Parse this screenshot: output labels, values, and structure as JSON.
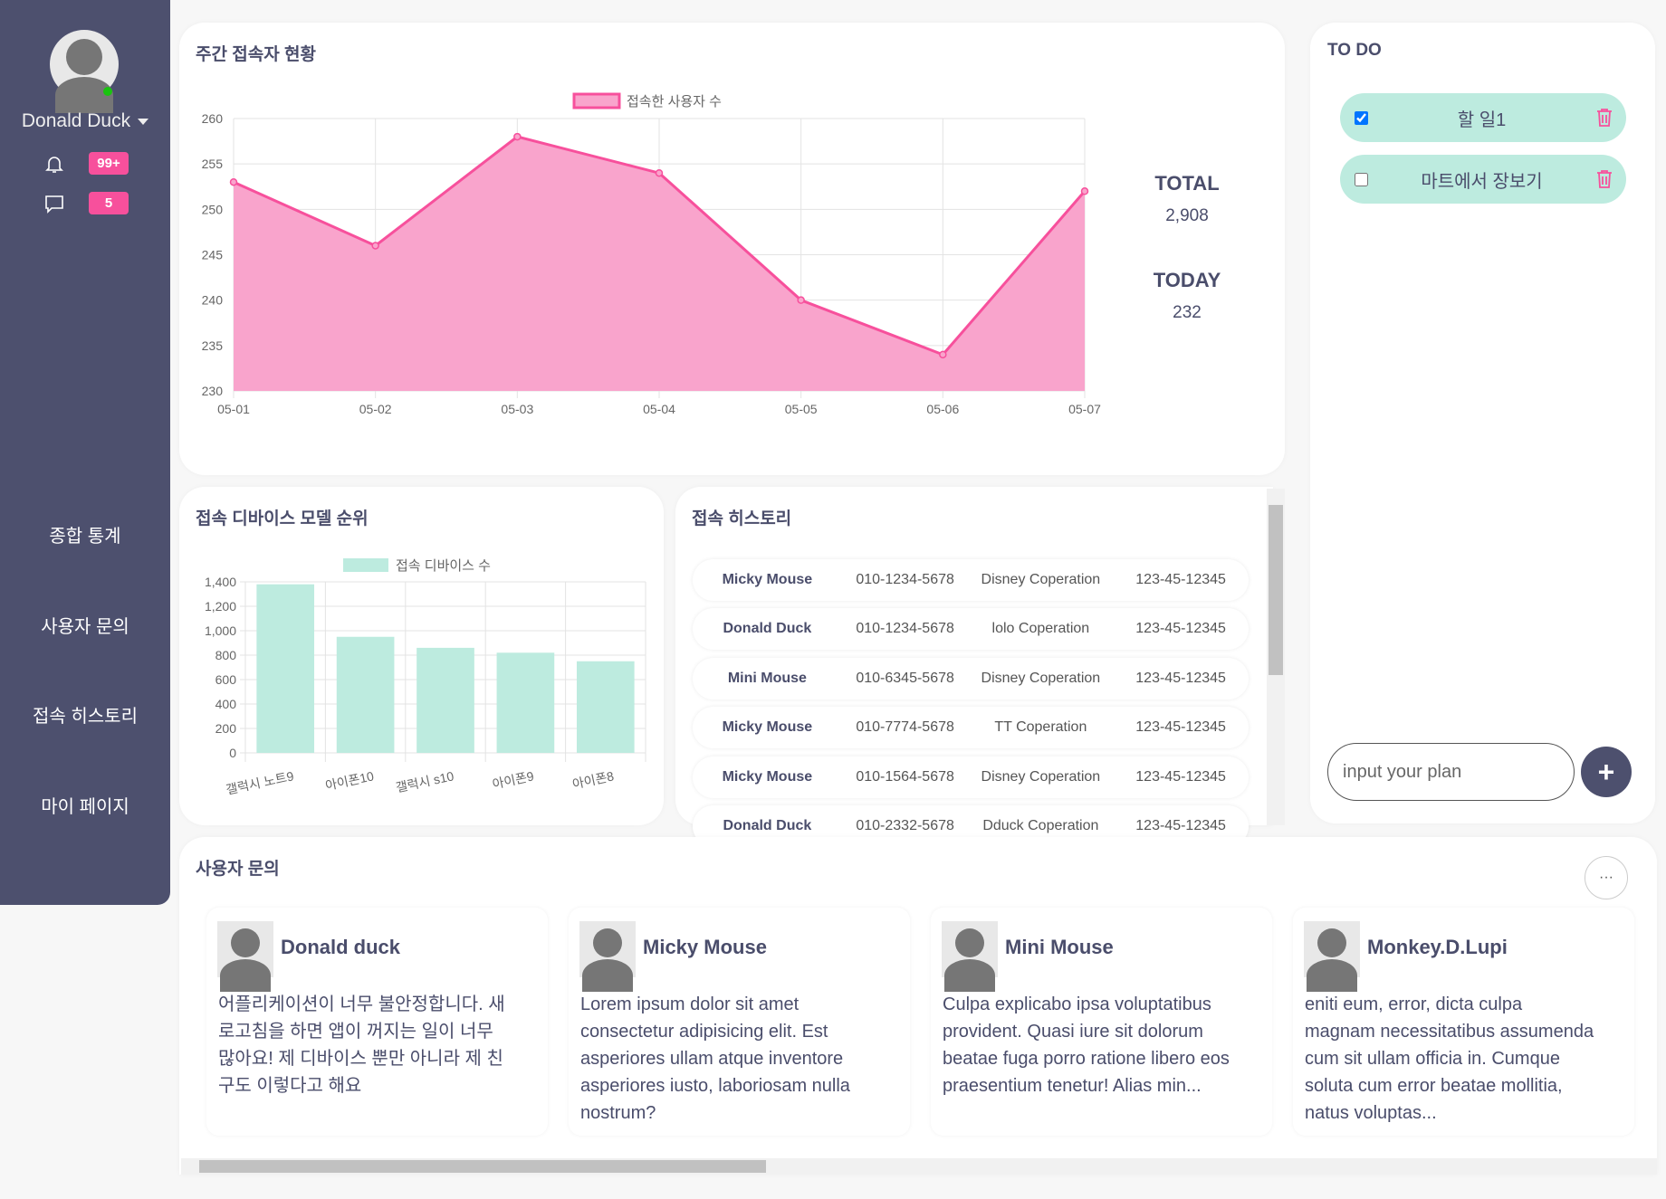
{
  "sidebar": {
    "user": "Donald Duck",
    "notifications": "99+",
    "messages": "5",
    "menu": [
      {
        "label": "종합 통계"
      },
      {
        "label": "사용자 문의"
      },
      {
        "label": "접속 히스토리"
      },
      {
        "label": "마이 페이지"
      }
    ]
  },
  "weekly": {
    "title": "주간 접속자 현황",
    "total_label": "TOTAL",
    "total": "2,908",
    "today_label": "TODAY",
    "today": "232"
  },
  "chart_data": [
    {
      "type": "area",
      "title": "",
      "legend": "접속한 사용자 수",
      "x": [
        "05-01",
        "05-02",
        "05-03",
        "05-04",
        "05-05",
        "05-06",
        "05-07"
      ],
      "series": [
        {
          "name": "접속한 사용자 수",
          "values": [
            253,
            246,
            258,
            254,
            240,
            234,
            252
          ]
        }
      ],
      "ylim": [
        230,
        260
      ],
      "yticks": [
        230,
        235,
        240,
        245,
        250,
        255,
        260
      ],
      "grid": true,
      "legend_position": "top",
      "color": "#f7509c",
      "fill": "#f9a4cc"
    },
    {
      "type": "bar",
      "title": "",
      "legend": "접속 디바이스 수",
      "categories": [
        "갤럭시 노트9",
        "아이폰10",
        "갤럭시 s10",
        "아이폰9",
        "아이폰8"
      ],
      "series": [
        {
          "name": "접속 디바이스 수",
          "values": [
            1380,
            950,
            860,
            820,
            750
          ]
        }
      ],
      "ylim": [
        0,
        1400
      ],
      "yticks": [
        "0",
        "200",
        "400",
        "600",
        "800",
        "1,000",
        "1,200",
        "1,400"
      ],
      "grid": true,
      "legend_position": "top",
      "color": "#bdebdf"
    }
  ],
  "devices": {
    "title": "접속 디바이스 모델 순위"
  },
  "history": {
    "title": "접속 히스토리",
    "rows": [
      {
        "name": "Micky Mouse",
        "phone": "010-1234-5678",
        "company": "Disney Coperation",
        "reg": "123-45-12345"
      },
      {
        "name": "Donald Duck",
        "phone": "010-1234-5678",
        "company": "lolo Coperation",
        "reg": "123-45-12345"
      },
      {
        "name": "Mini Mouse",
        "phone": "010-6345-5678",
        "company": "Disney Coperation",
        "reg": "123-45-12345"
      },
      {
        "name": "Micky Mouse",
        "phone": "010-7774-5678",
        "company": "TT Coperation",
        "reg": "123-45-12345"
      },
      {
        "name": "Micky Mouse",
        "phone": "010-1564-5678",
        "company": "Disney Coperation",
        "reg": "123-45-12345"
      },
      {
        "name": "Donald Duck",
        "phone": "010-2332-5678",
        "company": "Dduck Coperation",
        "reg": "123-45-12345"
      }
    ]
  },
  "todo": {
    "title": "TO DO",
    "items": [
      {
        "text": "할 일1",
        "checked": true
      },
      {
        "text": "마트에서 장보기",
        "checked": false
      }
    ],
    "placeholder": "input your plan",
    "add": "+"
  },
  "inquiry": {
    "title": "사용자 문의",
    "more": "···",
    "cards": [
      {
        "name": "Donald duck",
        "text": "어플리케이션이 너무 불안정합니다. 새로고침을 하면 앱이 꺼지는 일이 너무 많아요! 제 디바이스 뿐만 아니라 제 친구도 이렇다고 해요"
      },
      {
        "name": "Micky Mouse",
        "text": "Lorem ipsum dolor sit amet consectetur adipisicing elit. Est asperiores ullam atque inventore asperiores iusto, laboriosam nulla nostrum?"
      },
      {
        "name": "Mini Mouse",
        "text": "Culpa explicabo ipsa voluptatibus provident. Quasi iure sit dolorum beatae fuga porro ratione libero eos praesentium tenetur! Alias min..."
      },
      {
        "name": "Monkey.D.Lupi",
        "text": "eniti eum, error, dicta culpa magnam necessitatibus assumenda cum sit ullam officia in. Cumque soluta cum error beatae mollitia, natus voluptas..."
      }
    ]
  }
}
